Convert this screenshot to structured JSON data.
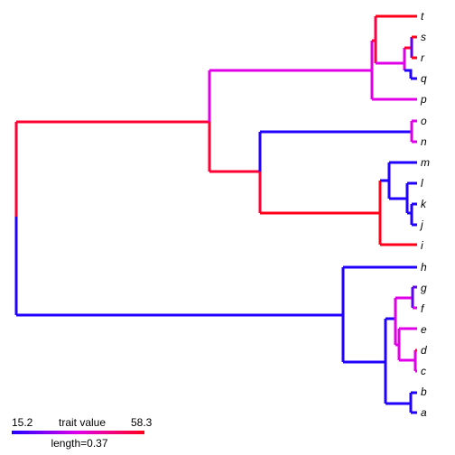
{
  "tree": {
    "tips": [
      "t",
      "s",
      "r",
      "q",
      "p",
      "o",
      "n",
      "m",
      "l",
      "k",
      "j",
      "i",
      "h",
      "g",
      "f",
      "e",
      "d",
      "c",
      "b",
      "a"
    ]
  },
  "legend": {
    "min_label": "15.2",
    "max_label": "58.3",
    "title": "trait value",
    "scale_label": "length=0.37",
    "gradient_colors": [
      "#2000ff",
      "#e000e8",
      "#ff0018"
    ]
  },
  "colors": {
    "low": "#2000ff",
    "mid": "#e000e8",
    "high": "#ff0018",
    "mid_high": "#ff0050",
    "low_mid": "#6000f0"
  }
}
